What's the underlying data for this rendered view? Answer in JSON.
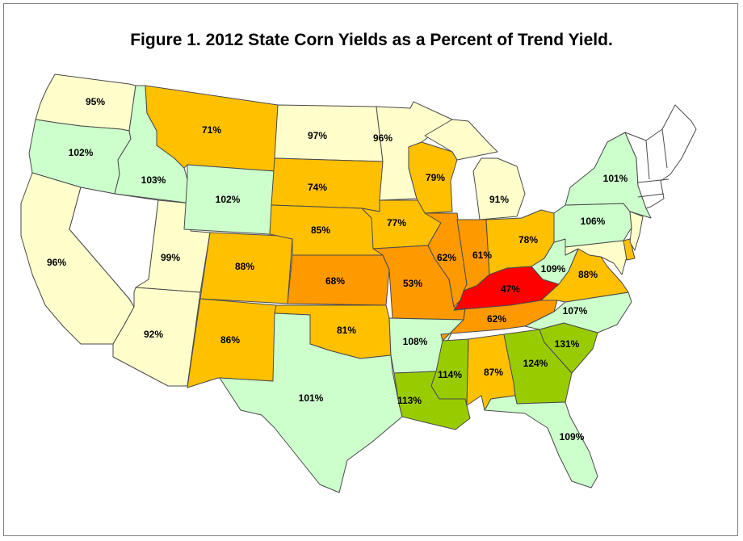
{
  "title": "Figure 1.  2012 State Corn Yields as a Percent of Trend Yield.",
  "colors": {
    "below_50": "#ff0000",
    "50_to_69": "#ff9900",
    "70_to_89": "#ffc000",
    "90_to_99": "#ffffcc",
    "100_to_109": "#ccffcc",
    "110_plus": "#99cc00",
    "no_data": "#ffffff"
  },
  "states": {
    "WA": {
      "value": "95%",
      "color": "#ffffcc"
    },
    "OR": {
      "value": "102%",
      "color": "#ccffcc"
    },
    "CA": {
      "value": "96%",
      "color": "#ffffcc"
    },
    "ID": {
      "value": "103%",
      "color": "#ccffcc"
    },
    "NV": {
      "value": "",
      "color": "#ffffff"
    },
    "UT": {
      "value": "99%",
      "color": "#ffffcc"
    },
    "AZ": {
      "value": "92%",
      "color": "#ffffcc"
    },
    "MT": {
      "value": "71%",
      "color": "#ffc000"
    },
    "WY": {
      "value": "102%",
      "color": "#ccffcc"
    },
    "CO": {
      "value": "88%",
      "color": "#ffc000"
    },
    "NM": {
      "value": "86%",
      "color": "#ffc000"
    },
    "ND": {
      "value": "97%",
      "color": "#ffffcc"
    },
    "SD": {
      "value": "74%",
      "color": "#ffc000"
    },
    "NE": {
      "value": "85%",
      "color": "#ffc000"
    },
    "KS": {
      "value": "68%",
      "color": "#ff9900"
    },
    "OK": {
      "value": "81%",
      "color": "#ffc000"
    },
    "TX": {
      "value": "101%",
      "color": "#ccffcc"
    },
    "MN": {
      "value": "96%",
      "color": "#ffffcc"
    },
    "IA": {
      "value": "77%",
      "color": "#ffc000"
    },
    "MO": {
      "value": "53%",
      "color": "#ff9900"
    },
    "AR": {
      "value": "108%",
      "color": "#ccffcc"
    },
    "LA": {
      "value": "113%",
      "color": "#99cc00"
    },
    "WI": {
      "value": "79%",
      "color": "#ffc000"
    },
    "IL": {
      "value": "62%",
      "color": "#ff9900"
    },
    "MS": {
      "value": "114%",
      "color": "#99cc00"
    },
    "MI": {
      "value": "91%",
      "color": "#ffffcc"
    },
    "IN": {
      "value": "61%",
      "color": "#ff9900"
    },
    "KY": {
      "value": "47%",
      "color": "#ff0000"
    },
    "TN": {
      "value": "62%",
      "color": "#ff9900"
    },
    "AL": {
      "value": "87%",
      "color": "#ffc000"
    },
    "OH": {
      "value": "78%",
      "color": "#ffc000"
    },
    "WV": {
      "value": "109%",
      "color": "#ccffcc"
    },
    "GA": {
      "value": "124%",
      "color": "#99cc00"
    },
    "FL": {
      "value": "109%",
      "color": "#ccffcc"
    },
    "SC": {
      "value": "131%",
      "color": "#99cc00"
    },
    "NC": {
      "value": "107%",
      "color": "#ccffcc"
    },
    "VA": {
      "value": "88%",
      "color": "#ffc000"
    },
    "PA": {
      "value": "106%",
      "color": "#ccffcc"
    },
    "NY": {
      "value": "101%",
      "color": "#ccffcc"
    },
    "MD": {
      "value": "",
      "color": "#ffffcc"
    },
    "DE": {
      "value": "",
      "color": "#ffc000"
    },
    "NJ": {
      "value": "",
      "color": "#ffffcc"
    },
    "NE_STATES": {
      "value": "",
      "color": "#ffffff"
    }
  }
}
